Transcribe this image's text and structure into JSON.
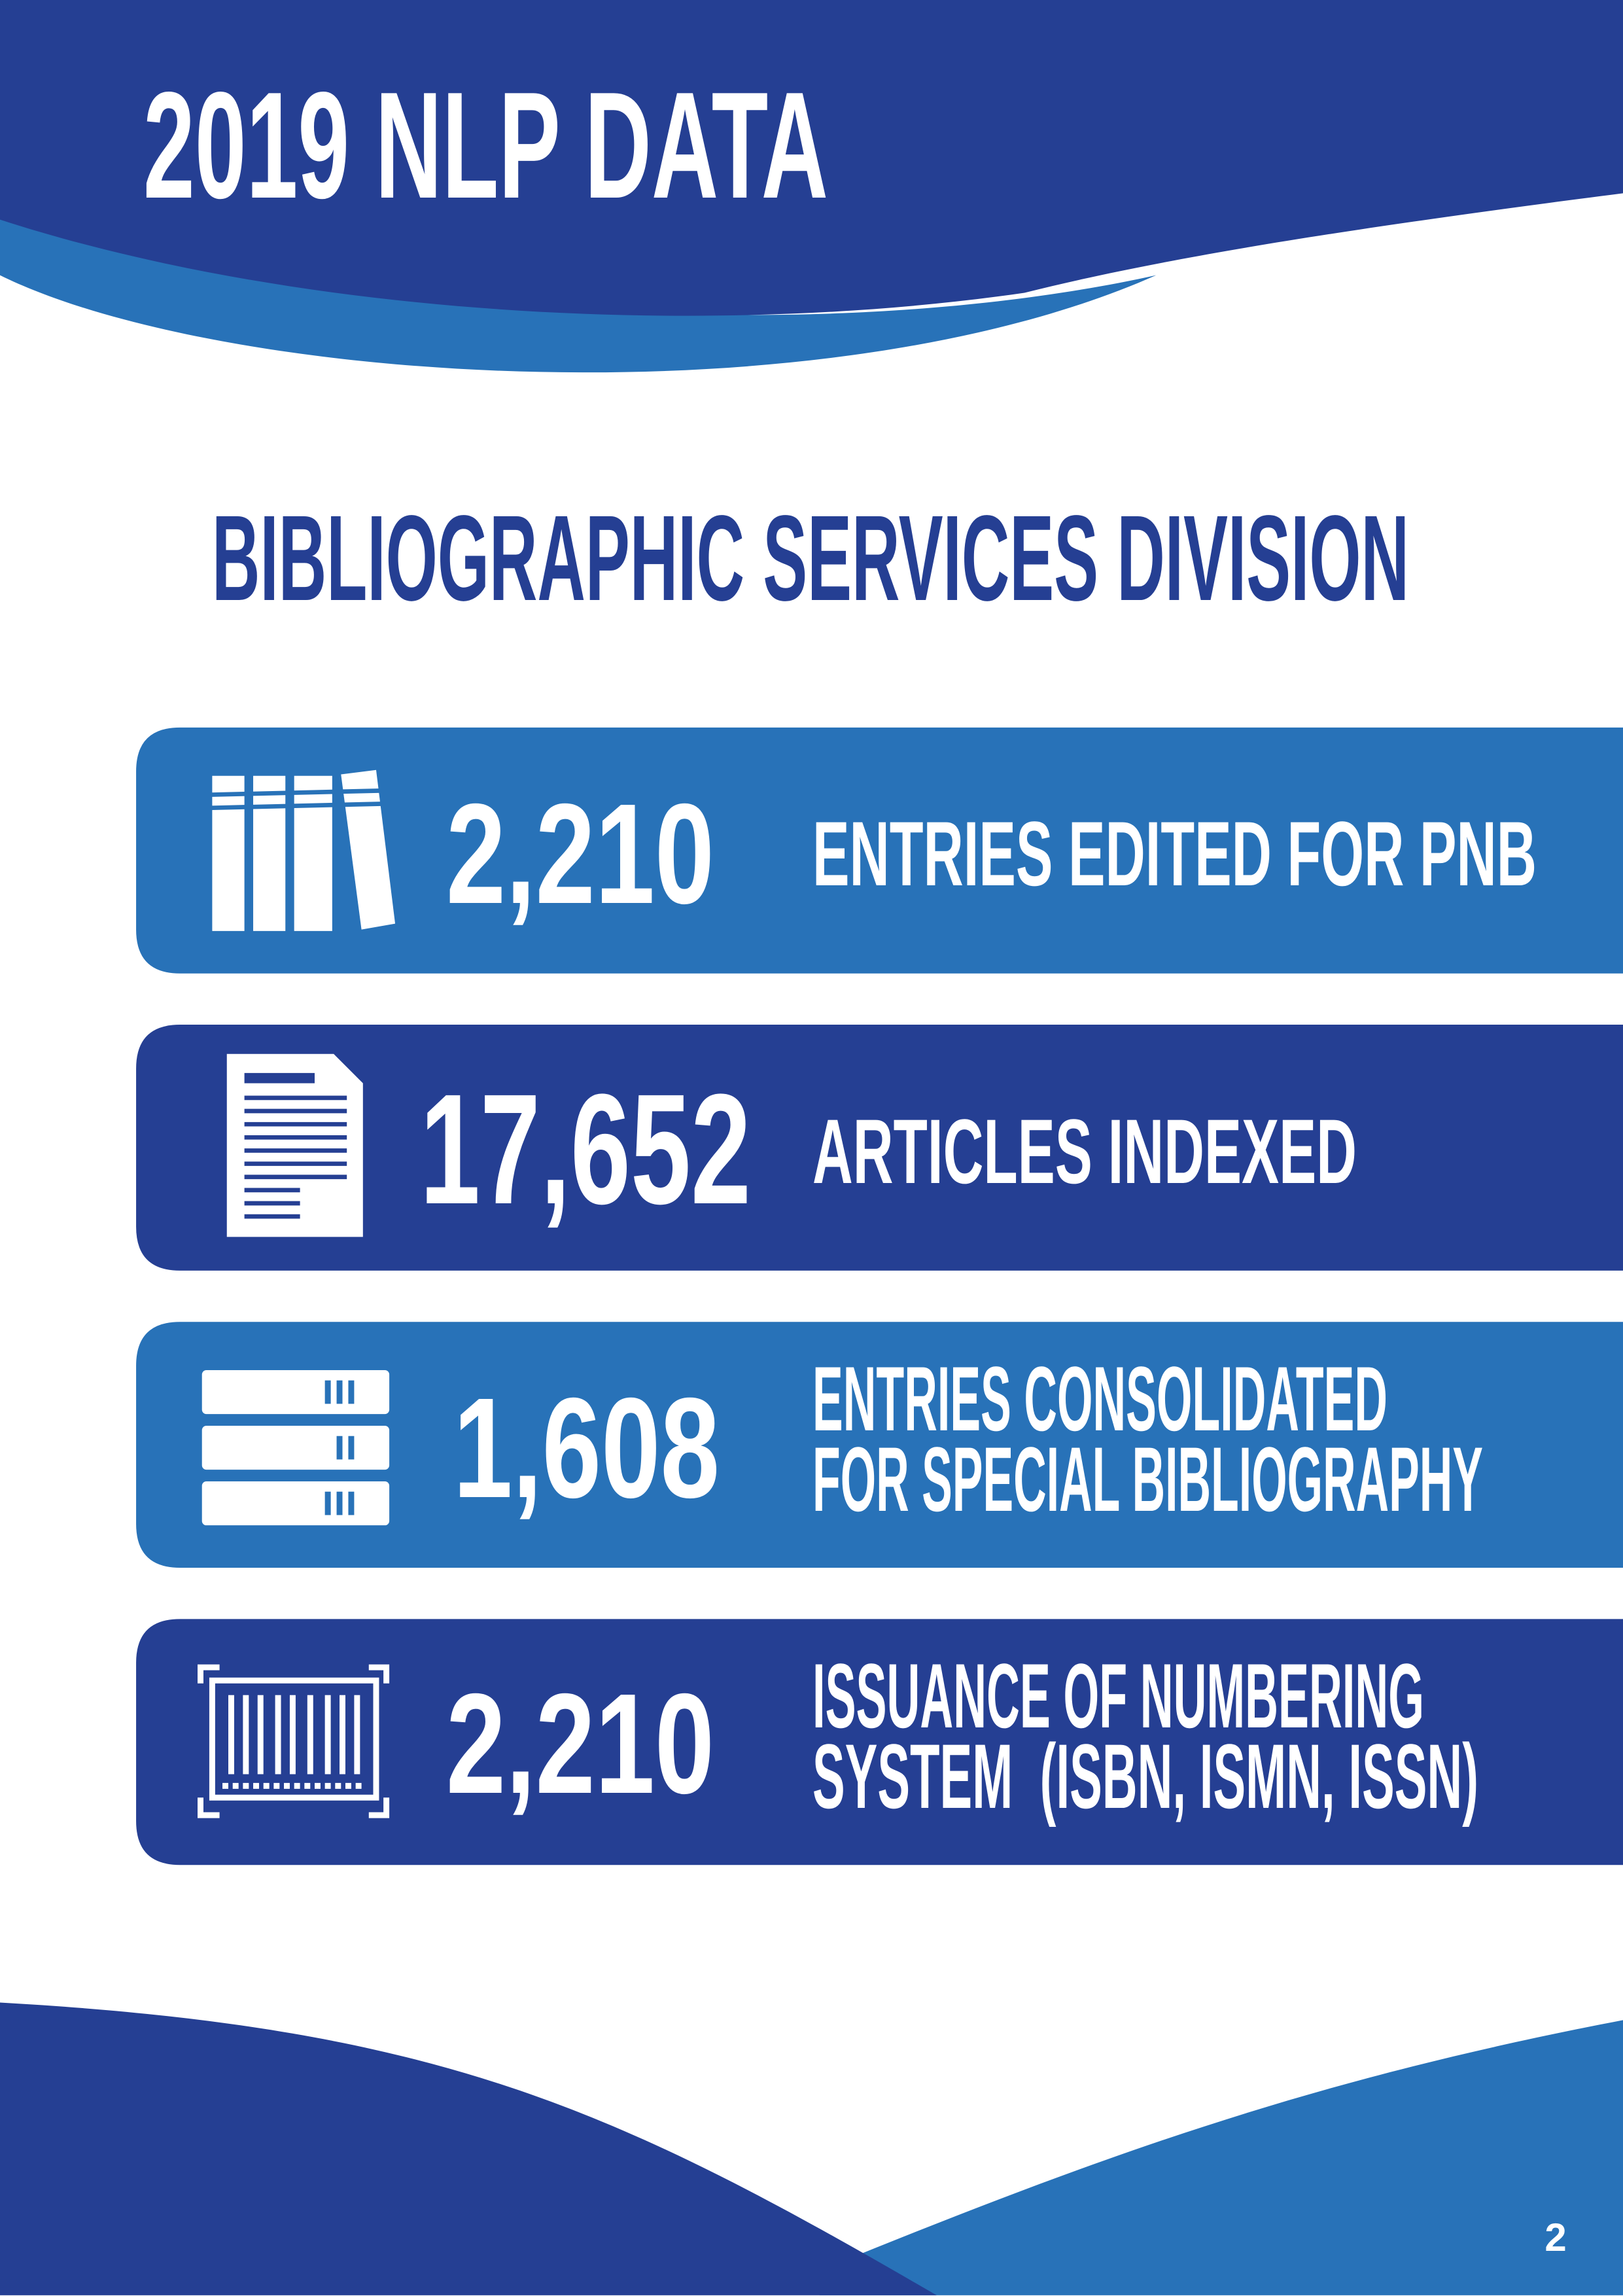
{
  "header": {
    "title": "2019 NLP DATA"
  },
  "section_title": "BIBLIOGRAPHIC SERVICES DIVISION",
  "stats": [
    {
      "value": "2,210",
      "label_lines": [
        "ENTRIES EDITED FOR PNB"
      ]
    },
    {
      "value": "17,652",
      "label_lines": [
        "ARTICLES INDEXED"
      ]
    },
    {
      "value": "1,608",
      "label_lines": [
        "ENTRIES CONSOLIDATED",
        "FOR SPECIAL BIBLIOGRAPHY"
      ]
    },
    {
      "value": "2,210",
      "label_lines": [
        "ISSUANCE OF NUMBERING",
        "SYSTEM  (ISBN, ISMN, ISSN)"
      ]
    }
  ],
  "page_number": "2"
}
